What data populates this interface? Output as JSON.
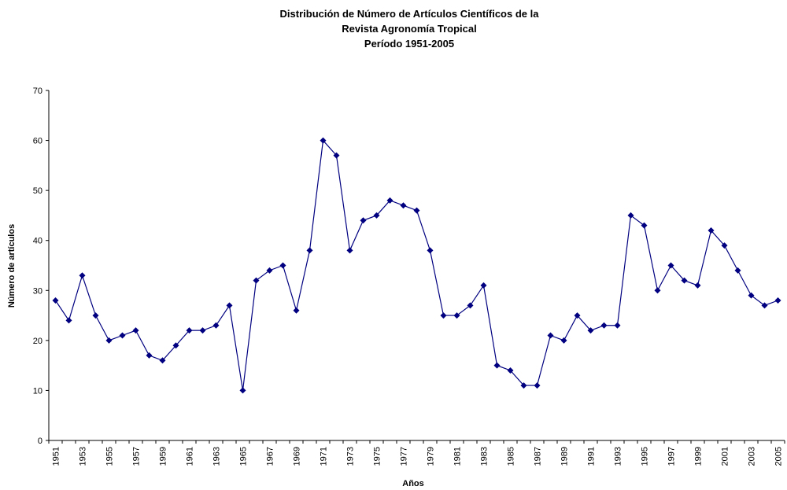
{
  "chart_data": {
    "type": "line",
    "title": [
      "Distribución de Número de Artículos Científicos de la",
      "Revista Agronomía Tropical",
      "Período 1951-2005"
    ],
    "xlabel": "Años",
    "ylabel": "Número de artículos",
    "categories": [
      "1951",
      null,
      "1953",
      null,
      "1955",
      null,
      "1957",
      null,
      "1959",
      null,
      "1961",
      null,
      "1963",
      null,
      "1965",
      null,
      "1967",
      null,
      "1969",
      null,
      "1971",
      null,
      "1973",
      null,
      "1975",
      null,
      "1977",
      null,
      "1979",
      null,
      "1981",
      null,
      "1983",
      null,
      "1985",
      null,
      "1987",
      null,
      "1989",
      null,
      "1991",
      null,
      "1993",
      null,
      "1995",
      null,
      "1997",
      null,
      "1999",
      null,
      "2001",
      null,
      "2003",
      null,
      "2005"
    ],
    "series": [
      {
        "color": "#000080",
        "values": [
          28,
          24,
          33,
          25,
          20,
          21,
          22,
          17,
          16,
          19,
          22,
          22,
          23,
          27,
          10,
          32,
          34,
          35,
          26,
          38,
          60,
          57,
          38,
          44,
          45,
          48,
          47,
          46,
          38,
          25,
          25,
          27,
          31,
          15,
          14,
          11,
          11,
          21,
          20,
          25,
          22,
          23,
          23,
          45,
          43,
          30,
          35,
          32,
          31,
          42,
          39,
          34,
          29,
          27,
          28
        ]
      }
    ],
    "ylim": [
      0,
      70
    ],
    "yticks": [
      0,
      10,
      20,
      30,
      40,
      50,
      60,
      70
    ],
    "grid": false
  }
}
